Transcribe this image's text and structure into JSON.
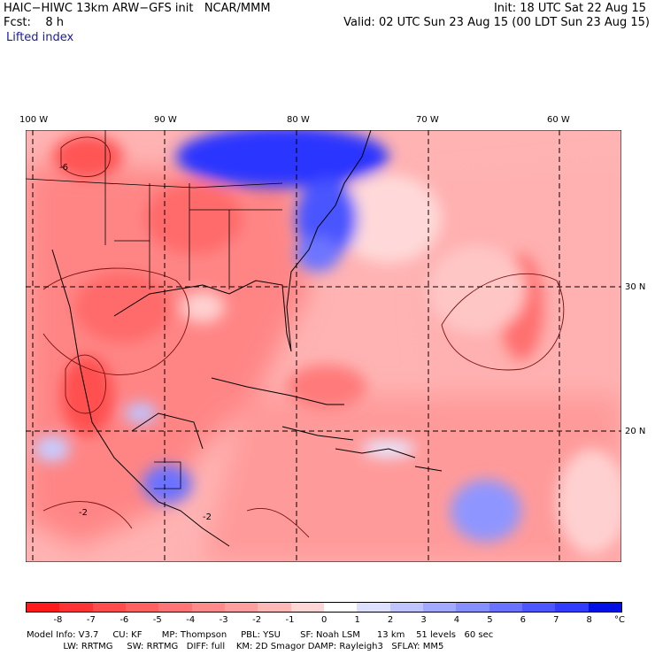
{
  "header": {
    "title": "HAIC−HIWC 13km ARW−GFS init   NCAR/MMM",
    "fcst": "Fcst:    8 h",
    "field": "Lifted index",
    "init": "Init: 18 UTC Sat 22 Aug 15",
    "valid": "Valid: 02 UTC Sun 23 Aug 15 (00 LDT Sun 23 Aug 15)"
  },
  "map": {
    "lon_labels": [
      "100 W",
      "90 W",
      "80 W",
      "70 W",
      "60 W"
    ],
    "lat_labels": [
      "30 N",
      "20 N"
    ],
    "contour_labels": [
      "-6",
      "-2",
      "-2"
    ]
  },
  "colorbar": {
    "labels": [
      "-8",
      "-7",
      "-6",
      "-5",
      "-4",
      "-3",
      "-2",
      "-1",
      "0",
      "1",
      "2",
      "3",
      "4",
      "5",
      "6",
      "7",
      "8"
    ],
    "unit": "°C",
    "colors": [
      "#ff1a1a",
      "#ff3333",
      "#ff4d4d",
      "#ff6161",
      "#ff7575",
      "#ff8a8a",
      "#ff9e9e",
      "#ffb8b8",
      "#ffd6d6",
      "#ffffff",
      "#dde0ff",
      "#bfc4ff",
      "#a3a9ff",
      "#878eff",
      "#6a72ff",
      "#4d57ff",
      "#303cff",
      "#0010e6"
    ]
  },
  "footer": {
    "line1": "Model Info: V3.7     CU: KF       MP: Thompson     PBL: YSU       SF: Noah LSM      13 km    51 levels   60 sec",
    "line2": "             LW: RRTMG     SW: RRTMG   DIFF: full    KM: 2D Smagor DAMP: Rayleigh3   SFLAY: MM5"
  }
}
